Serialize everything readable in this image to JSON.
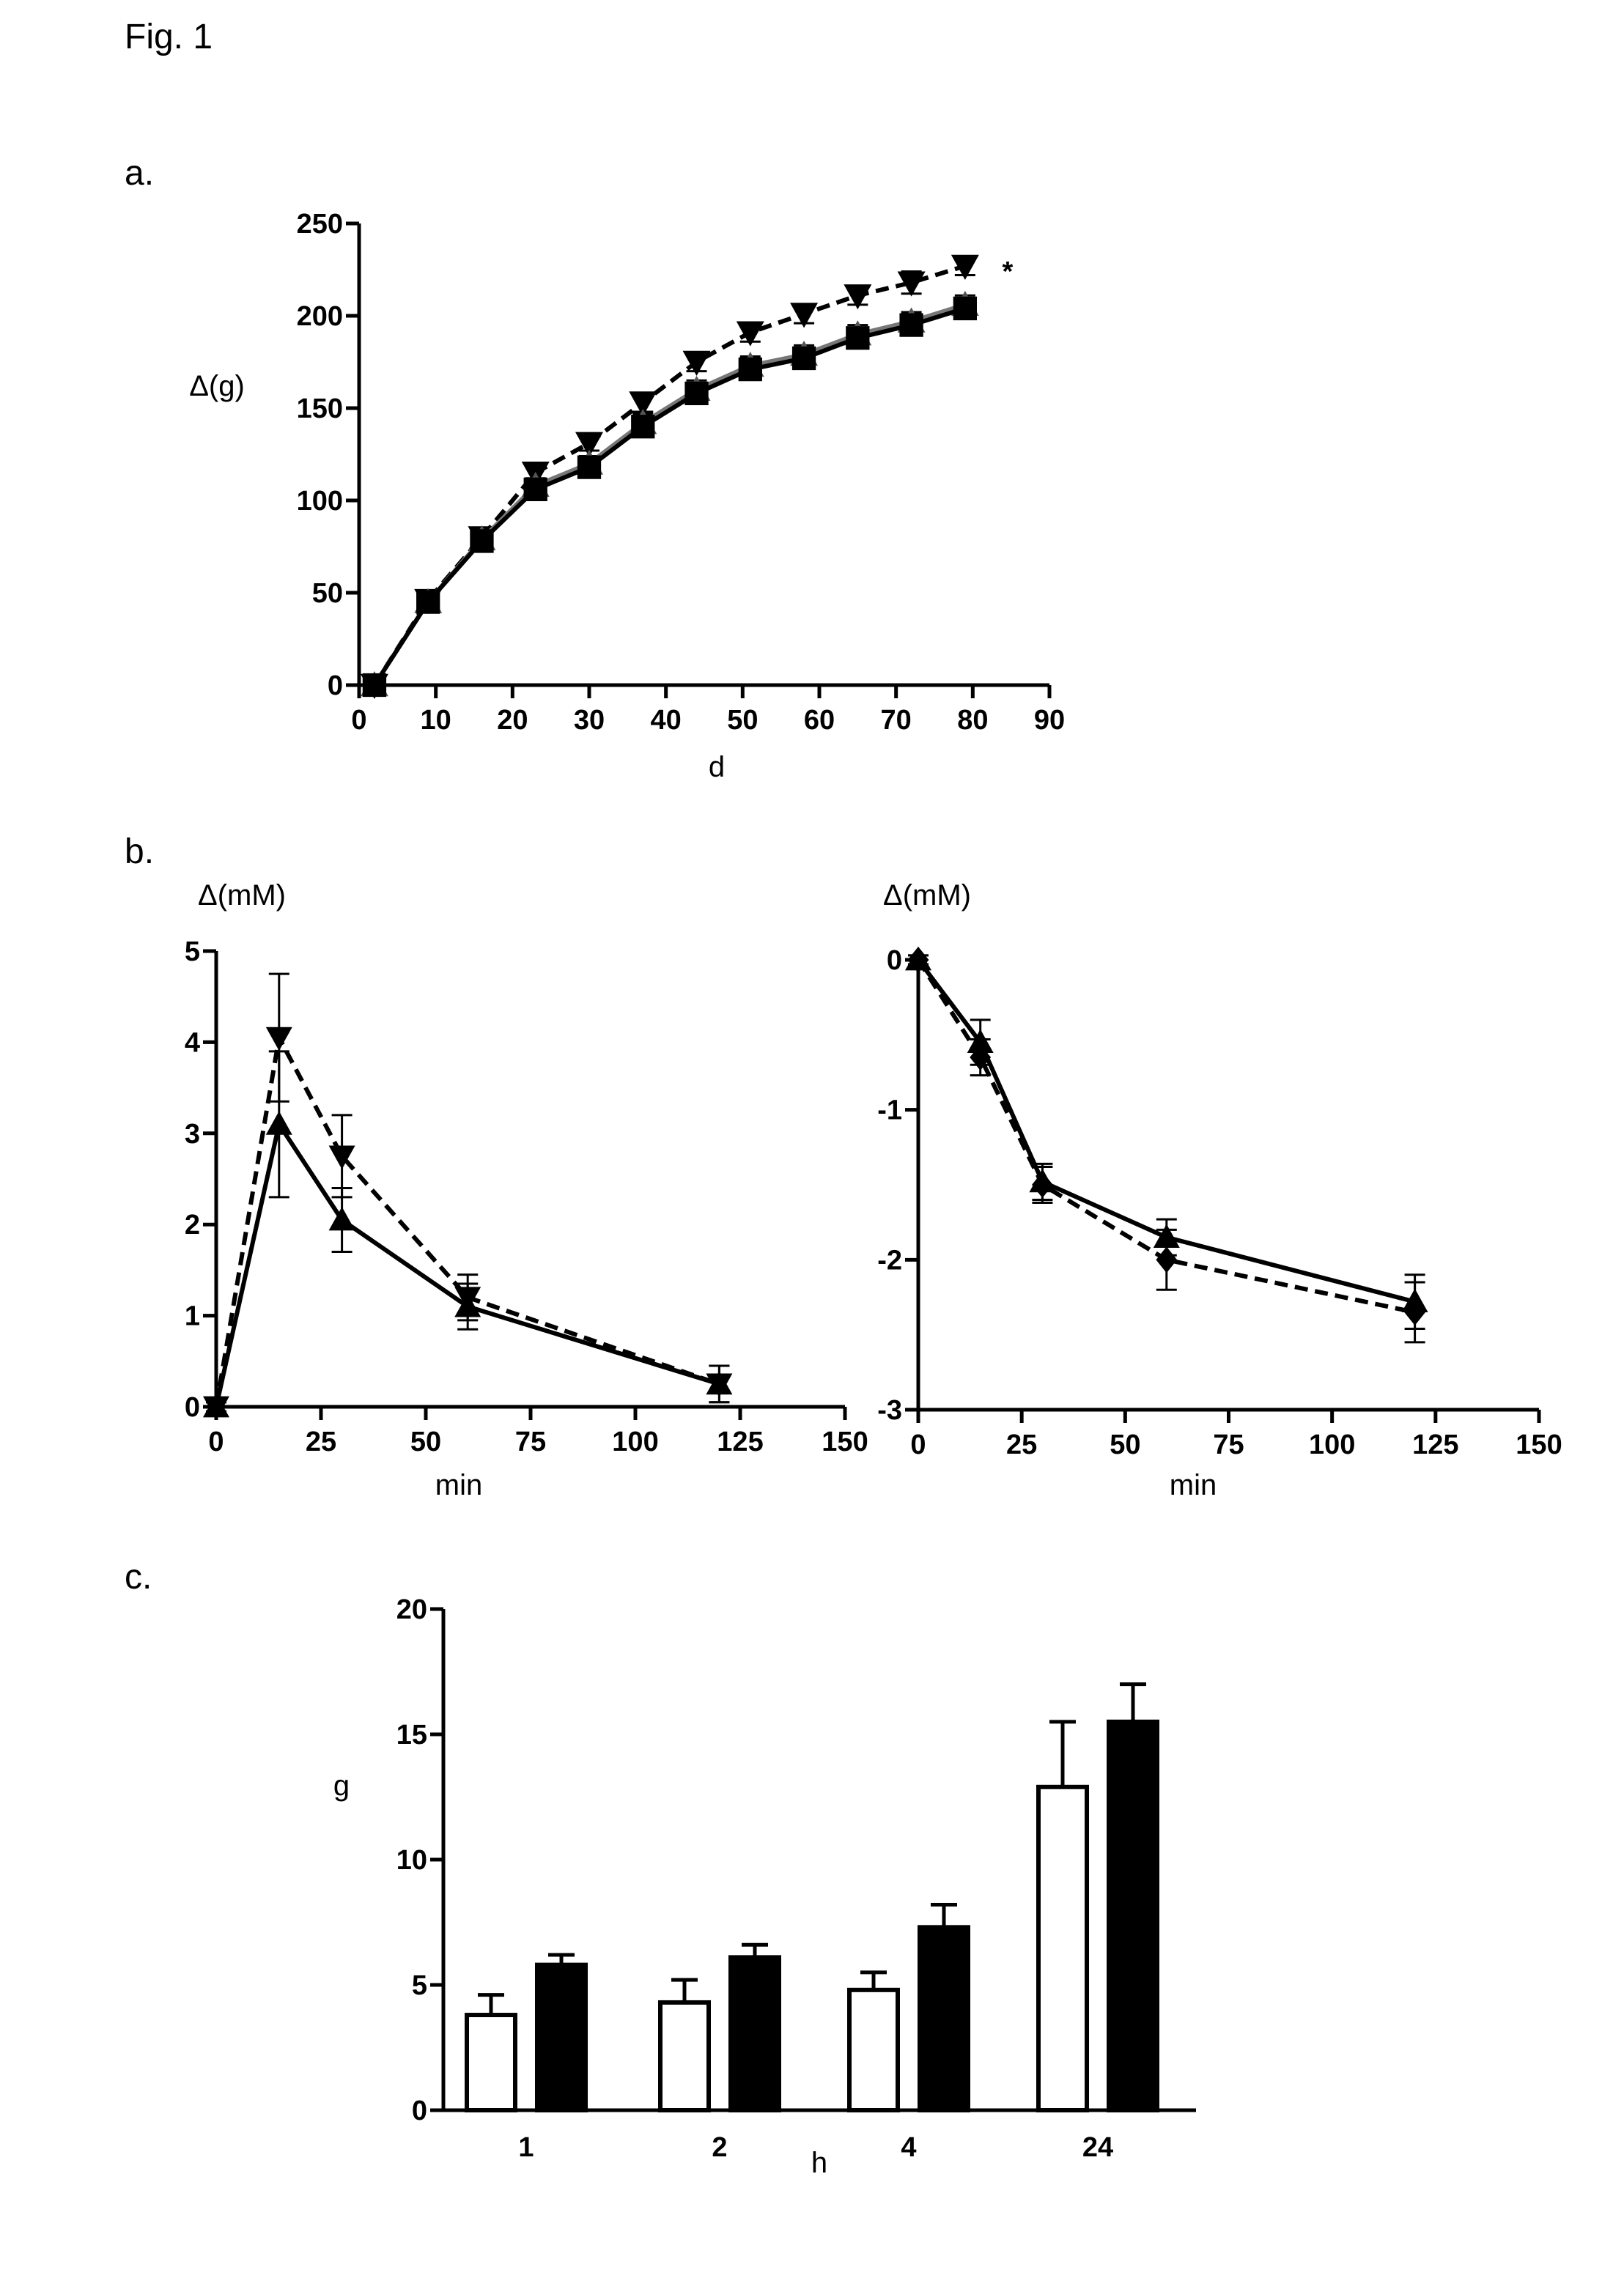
{
  "figure": {
    "title": "Fig. 1",
    "panel_labels": [
      "a.",
      "b.",
      "c."
    ]
  },
  "chart_data": [
    {
      "panel": "a.",
      "type": "line",
      "ylabel": "Δ(g)",
      "xlabel": "d",
      "xlim": [
        0,
        90
      ],
      "ylim": [
        0,
        250
      ],
      "xticks": [
        "0",
        "10",
        "20",
        "30",
        "40",
        "50",
        "60",
        "70",
        "80",
        "90"
      ],
      "yticks": [
        "0",
        "50",
        "100",
        "150",
        "200",
        "250"
      ],
      "annotation": "*",
      "series": [
        {
          "marker": "triangle-down",
          "line": "dashed",
          "x": [
            2,
            9,
            16,
            23,
            30,
            37,
            44,
            51,
            58,
            65,
            72,
            79
          ],
          "y": [
            0,
            46,
            80,
            115,
            131,
            153,
            175,
            191,
            201,
            211,
            218,
            227
          ],
          "err": [
            1,
            3,
            4,
            4,
            4,
            5,
            5,
            5,
            5,
            5,
            6,
            5
          ]
        },
        {
          "marker": "triangle-up",
          "line": "solid-gray",
          "x": [
            2,
            9,
            16,
            23,
            30,
            37,
            44,
            51,
            58,
            65,
            72,
            79
          ],
          "y": [
            0,
            45,
            79,
            108,
            120,
            142,
            160,
            173,
            179,
            190,
            197,
            206
          ],
          "err": [
            1,
            3,
            4,
            4,
            4,
            5,
            5,
            5,
            5,
            5,
            5,
            5
          ]
        },
        {
          "marker": "square",
          "line": "solid",
          "x": [
            2,
            9,
            16,
            23,
            30,
            37,
            44,
            51,
            58,
            65,
            72,
            79
          ],
          "y": [
            0,
            45,
            78,
            106,
            118,
            140,
            158,
            171,
            177,
            188,
            195,
            204
          ],
          "err": [
            1,
            3,
            4,
            4,
            4,
            5,
            5,
            5,
            5,
            5,
            5,
            5
          ]
        }
      ]
    },
    {
      "panel": "b. left",
      "type": "line",
      "ylabel": "Δ(mM)",
      "xlabel": "min",
      "xlim": [
        0,
        150
      ],
      "ylim": [
        0,
        5
      ],
      "xticks": [
        "0",
        "25",
        "50",
        "75",
        "100",
        "125",
        "150"
      ],
      "yticks": [
        "0",
        "1",
        "2",
        "3",
        "4",
        "5"
      ],
      "series": [
        {
          "marker": "triangle-down",
          "line": "dashed",
          "x": [
            0,
            15,
            30,
            60,
            120
          ],
          "y": [
            0,
            4.05,
            2.75,
            1.2,
            0.25
          ],
          "err": [
            0.05,
            0.7,
            0.45,
            0.25,
            0.2
          ]
        },
        {
          "marker": "triangle-up",
          "line": "solid",
          "x": [
            0,
            15,
            30,
            60,
            120
          ],
          "y": [
            0,
            3.1,
            2.05,
            1.1,
            0.25
          ],
          "err": [
            0.05,
            0.8,
            0.35,
            0.25,
            0.2
          ]
        }
      ]
    },
    {
      "panel": "b. right",
      "type": "line",
      "ylabel": "Δ(mM)",
      "xlabel": "min",
      "xlim": [
        0,
        150
      ],
      "ylim": [
        -3,
        0
      ],
      "xticks": [
        "0",
        "25",
        "50",
        "75",
        "100",
        "125",
        "150"
      ],
      "yticks": [
        "0",
        "-1",
        "-2",
        "-3"
      ],
      "series": [
        {
          "marker": "diamond",
          "line": "dashed",
          "x": [
            0,
            15,
            30,
            60,
            120
          ],
          "y": [
            0,
            -0.65,
            -1.5,
            -2.0,
            -2.35
          ],
          "err": [
            0.03,
            0.12,
            0.12,
            0.2,
            0.2
          ]
        },
        {
          "marker": "triangle-up",
          "line": "solid",
          "x": [
            0,
            15,
            30,
            60,
            120
          ],
          "y": [
            0,
            -0.55,
            -1.48,
            -1.85,
            -2.28
          ],
          "err": [
            0.03,
            0.15,
            0.12,
            0.12,
            0.18
          ]
        }
      ]
    },
    {
      "panel": "c.",
      "type": "bar",
      "ylabel": "g",
      "xlabel": "h",
      "ylim": [
        0,
        20
      ],
      "yticks": [
        "0",
        "5",
        "10",
        "15",
        "20"
      ],
      "categories": [
        "1",
        "2",
        "4",
        "24"
      ],
      "series": [
        {
          "fill": "#ffffff",
          "values": [
            3.8,
            4.3,
            4.8,
            12.9
          ],
          "err": [
            0.8,
            0.9,
            0.7,
            2.6
          ]
        },
        {
          "fill": "#000000",
          "values": [
            5.8,
            6.1,
            7.3,
            15.5
          ],
          "err": [
            0.4,
            0.5,
            0.9,
            1.5
          ]
        }
      ]
    }
  ]
}
